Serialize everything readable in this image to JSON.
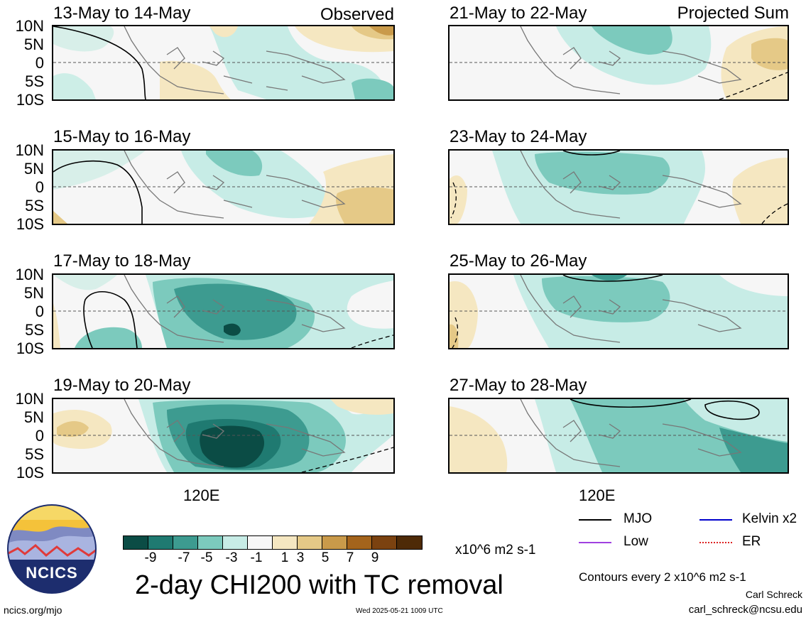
{
  "panels_left_tag": "Observed",
  "panels_right_tag": "Projected Sum",
  "panels": [
    {
      "title": "13-May to 14-May"
    },
    {
      "title": "15-May to 16-May"
    },
    {
      "title": "17-May to 18-May"
    },
    {
      "title": "19-May to 20-May"
    },
    {
      "title": "21-May to 22-May"
    },
    {
      "title": "23-May to 24-May"
    },
    {
      "title": "25-May to 26-May"
    },
    {
      "title": "27-May to 28-May"
    }
  ],
  "lat_labels": [
    "10N",
    "5N",
    "0",
    "5S",
    "10S"
  ],
  "lon_label": "120E",
  "colorbar": {
    "colors": [
      "#0b4c45",
      "#1f7a71",
      "#3d9b90",
      "#7ccabd",
      "#c7ece6",
      "#f7f7f7",
      "#f5e7c1",
      "#e5c987",
      "#c99a4a",
      "#a4641c",
      "#7b4210",
      "#4e2a07"
    ],
    "ticks": [
      "-9",
      "-7",
      "-5",
      "-3",
      "-1",
      "1",
      "3",
      "5",
      "7",
      "9"
    ],
    "units": "x10^6 m2 s-1"
  },
  "main_title": "2-day CHI200 with TC removal",
  "legend": [
    {
      "label": "MJO",
      "color": "#000000",
      "style": "solid"
    },
    {
      "label": "Kelvin x2",
      "color": "#0000cc",
      "style": "solid"
    },
    {
      "label": "Low",
      "color": "#a040e0",
      "style": "solid"
    },
    {
      "label": "ER",
      "color": "#dd2222",
      "style": "dotted"
    }
  ],
  "contour_note": "Contours every 2 x10^6 m2 s-1",
  "author": "Carl Schreck",
  "email": "carl_schreck@ncsu.edu",
  "url": "ncics.org/mjo",
  "timestamp": "Wed 2025-05-21 1009 UTC",
  "logo_text": "NCICS"
}
